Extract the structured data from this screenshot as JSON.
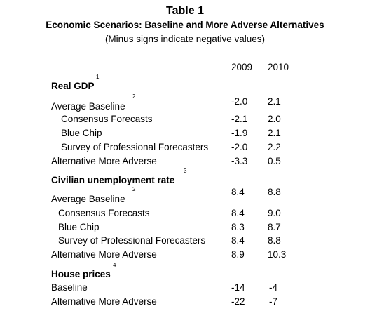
{
  "title": "Table 1",
  "subtitle": "Economic Scenarios: Baseline and More Adverse Alternatives",
  "note": "(Minus signs indicate negative values)",
  "columns": [
    "2009",
    "2010"
  ],
  "sections": [
    {
      "heading": "Real GDP",
      "footnote": "1",
      "rows": [
        {
          "label": "Average Baseline",
          "footnote": "2",
          "values": [
            "-2.0",
            "2.1"
          ]
        },
        {
          "label": "Consensus Forecasts",
          "values": [
            "-2.1",
            "2.0"
          ]
        },
        {
          "label": "Blue Chip",
          "values": [
            "-1.9",
            "2.1"
          ]
        },
        {
          "label": "Survey of Professional Forecasters",
          "values": [
            "-2.0",
            "2.2"
          ]
        },
        {
          "label": "Alternative More Adverse",
          "values": [
            "-3.3",
            "0.5"
          ]
        }
      ]
    },
    {
      "heading": "Civilian unemployment rate",
      "footnote": "3",
      "rows": [
        {
          "label": "Average Baseline",
          "footnote": "2",
          "values": [
            "8.4",
            "8.8"
          ]
        },
        {
          "label": "Consensus Forecasts",
          "values": [
            "8.4",
            "9.0"
          ]
        },
        {
          "label": "Blue Chip",
          "values": [
            "8.3",
            "8.7"
          ]
        },
        {
          "label": "Survey of Professional Forecasters",
          "values": [
            "8.4",
            "8.8"
          ]
        },
        {
          "label": "Alternative More Adverse",
          "values": [
            "8.9",
            "10.3"
          ]
        }
      ]
    },
    {
      "heading": "House prices",
      "footnote": "4",
      "rows": [
        {
          "label": "Baseline",
          "values": [
            "-14",
            "-4"
          ]
        },
        {
          "label": "Alternative More Adverse",
          "values": [
            "-22",
            "-7"
          ]
        }
      ]
    }
  ]
}
